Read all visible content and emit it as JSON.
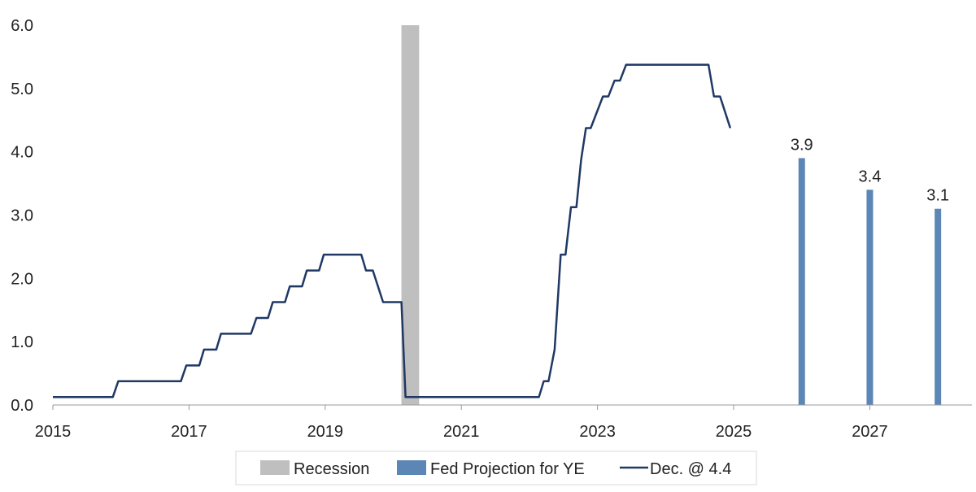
{
  "chart_data": {
    "type": "line",
    "x_range": [
      2015,
      2028.5
    ],
    "ylim": [
      0,
      6
    ],
    "y_ticks": [
      "0.0",
      "1.0",
      "2.0",
      "3.0",
      "4.0",
      "5.0",
      "6.0"
    ],
    "x_ticks": [
      "2015",
      "2017",
      "2019",
      "2021",
      "2023",
      "2025",
      "2027"
    ],
    "grid": false,
    "legend_position": "bottom",
    "colors": {
      "line": "#1f3864",
      "projection": "#5b86b5",
      "recession": "#bfbfbf",
      "axis": "#999999"
    },
    "recession": {
      "name": "Recession",
      "start": 2020.12,
      "end": 2020.38,
      "value": 6.0
    },
    "projection": {
      "name": "Fed Projection for YE",
      "points": [
        {
          "x": 2026.0,
          "value": 3.9,
          "label": "3.9"
        },
        {
          "x": 2027.0,
          "value": 3.4,
          "label": "3.4"
        },
        {
          "x": 2028.0,
          "value": 3.1,
          "label": "3.1"
        }
      ]
    },
    "line_series": {
      "name": "Dec. @ 4.4",
      "points": [
        [
          2015.0,
          0.125
        ],
        [
          2015.88,
          0.125
        ],
        [
          2015.96,
          0.375
        ],
        [
          2016.88,
          0.375
        ],
        [
          2016.96,
          0.625
        ],
        [
          2017.15,
          0.625
        ],
        [
          2017.22,
          0.875
        ],
        [
          2017.4,
          0.875
        ],
        [
          2017.47,
          1.125
        ],
        [
          2017.91,
          1.125
        ],
        [
          2017.99,
          1.375
        ],
        [
          2018.16,
          1.375
        ],
        [
          2018.23,
          1.625
        ],
        [
          2018.41,
          1.625
        ],
        [
          2018.48,
          1.875
        ],
        [
          2018.66,
          1.875
        ],
        [
          2018.73,
          2.125
        ],
        [
          2018.91,
          2.125
        ],
        [
          2018.98,
          2.375
        ],
        [
          2019.53,
          2.375
        ],
        [
          2019.6,
          2.125
        ],
        [
          2019.7,
          2.125
        ],
        [
          2019.85,
          1.625
        ],
        [
          2020.12,
          1.625
        ],
        [
          2020.18,
          0.125
        ],
        [
          2022.14,
          0.125
        ],
        [
          2022.21,
          0.375
        ],
        [
          2022.28,
          0.375
        ],
        [
          2022.37,
          0.875
        ],
        [
          2022.46,
          2.375
        ],
        [
          2022.53,
          2.375
        ],
        [
          2022.61,
          3.125
        ],
        [
          2022.69,
          3.125
        ],
        [
          2022.76,
          3.875
        ],
        [
          2022.83,
          4.375
        ],
        [
          2022.9,
          4.375
        ],
        [
          2023.08,
          4.875
        ],
        [
          2023.16,
          4.875
        ],
        [
          2023.25,
          5.125
        ],
        [
          2023.33,
          5.125
        ],
        [
          2023.42,
          5.375
        ],
        [
          2024.63,
          5.375
        ],
        [
          2024.71,
          4.875
        ],
        [
          2024.8,
          4.875
        ],
        [
          2024.95,
          4.375
        ]
      ]
    }
  }
}
